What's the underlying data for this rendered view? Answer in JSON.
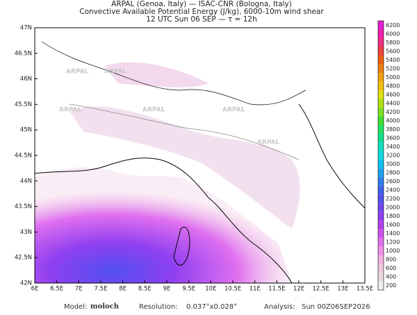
{
  "header": {
    "line1": "ARPAL (Genoa, Italy)  —  ISAC-CNR (Bologna, Italy)",
    "line2": "Convective Available Potential Energy (J/kg), 6000-10m wind shear",
    "line3": "12 UTC Sun 06 SEP  —  τ = 12h"
  },
  "lat_labels": [
    "47N",
    "46.5N",
    "46N",
    "45.5N",
    "45N",
    "44.5N",
    "44N",
    "43.5N",
    "43N",
    "42.5N",
    "42N"
  ],
  "lon_labels": [
    "6E",
    "6.5E",
    "7E",
    "7.5E",
    "8E",
    "8.5E",
    "9E",
    "9.5E",
    "10E",
    "10.5E",
    "11E",
    "11.5E",
    "12E",
    "12.5E",
    "13E",
    "13.5E"
  ],
  "watermark": "ARPAL",
  "colorbar": {
    "levels": [
      6200,
      6000,
      5800,
      5600,
      5400,
      5200,
      5000,
      4800,
      4600,
      4400,
      4200,
      4000,
      3800,
      3600,
      3400,
      3200,
      3000,
      2800,
      2600,
      2400,
      2200,
      2000,
      1800,
      1600,
      1400,
      1200,
      1000,
      800,
      600,
      400,
      200
    ],
    "colors": [
      "#e020d0",
      "#f020b0",
      "#f03080",
      "#f04040",
      "#f06010",
      "#f08010",
      "#f0a010",
      "#f0c010",
      "#e0e010",
      "#b0e010",
      "#80e020",
      "#40e030",
      "#20e060",
      "#10e090",
      "#10e0c0",
      "#10d8e0",
      "#10c0f0",
      "#20a0f0",
      "#3080f0",
      "#4060f0",
      "#5050f0",
      "#7048f0",
      "#9040f0",
      "#b040f0",
      "#d050f0",
      "#e070f0",
      "#f090e8",
      "#f0b0e0",
      "#f0c8e0",
      "#e8d8e0",
      "#f0f0f0"
    ]
  },
  "footer": {
    "model_label": "Model:",
    "model": "moloch",
    "resolution_label": "Resolution:",
    "resolution": "0.037°x0.028°",
    "analysis_label": "Analysis:",
    "analysis": "Sun 00Z06SEP2026"
  }
}
